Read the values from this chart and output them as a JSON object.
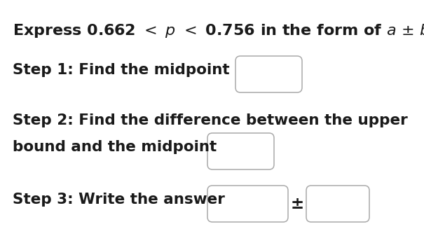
{
  "title_part1": "Express 0.662 < ",
  "title_italic_p": "p",
  "title_part2": " < 0.756 in the form of ",
  "title_italic_a": "a",
  "title_pm": " ± ",
  "title_italic_b": "b",
  "title_end": ".",
  "step1_text": "Step 1: Find the midpoint",
  "step2_line1": "Step 2: Find the difference between the upper",
  "step2_line2": "bound and the midpoint",
  "step3_text": "Step 3: Write the answer",
  "pm_symbol": "±",
  "bg_color": "#ffffff",
  "text_color": "#1a1a1a",
  "box_color": "#999999",
  "font_size_title": 16,
  "font_size_steps": 15.5
}
